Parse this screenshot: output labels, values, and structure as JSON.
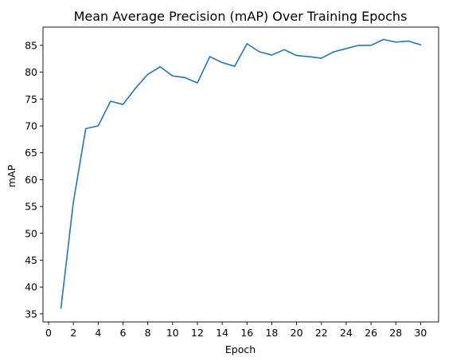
{
  "chart_data": {
    "type": "line",
    "title": "Mean Average Precision (mAP) Over Training Epochs",
    "xlabel": "Epoch",
    "ylabel": "mAP",
    "xlim": [
      -0.45,
      31.45
    ],
    "ylim": [
      33.5,
      88.4
    ],
    "grid": false,
    "legend": "none",
    "line_color": "#1f77b4",
    "xticks": [
      0,
      2,
      4,
      6,
      8,
      10,
      12,
      14,
      16,
      18,
      20,
      22,
      24,
      26,
      28,
      30
    ],
    "yticks": [
      35,
      40,
      45,
      50,
      55,
      60,
      65,
      70,
      75,
      80,
      85
    ],
    "x": [
      1,
      2,
      3,
      4,
      5,
      6,
      7,
      8,
      9,
      10,
      11,
      12,
      13,
      14,
      15,
      16,
      17,
      18,
      19,
      20,
      21,
      22,
      23,
      24,
      25,
      26,
      27,
      28,
      29,
      30
    ],
    "series": [
      {
        "values": [
          36.1,
          55.8,
          69.5,
          70.0,
          74.6,
          74.0,
          77.0,
          79.6,
          81.0,
          79.3,
          79.0,
          78.0,
          82.9,
          81.8,
          81.1,
          85.3,
          83.8,
          83.2,
          84.2,
          83.1,
          82.9,
          82.6,
          83.8,
          84.4,
          85.0,
          85.0,
          86.1,
          85.6,
          85.8,
          85.1
        ]
      }
    ]
  }
}
